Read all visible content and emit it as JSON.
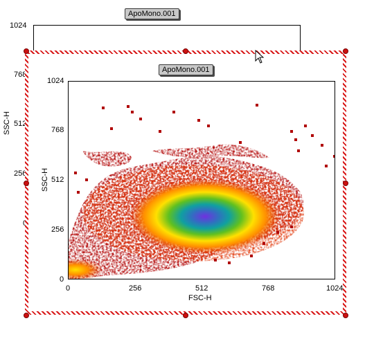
{
  "back_plot": {
    "title": "ApoMono.001",
    "y_axis_label": "SSC-H",
    "y_ticks": [
      "1024",
      "768",
      "512",
      "256",
      "0"
    ]
  },
  "front_plot": {
    "title": "ApoMono.001",
    "x_axis_label": "FSC-H",
    "y_axis_label": "SSC-H",
    "x_ticks": [
      "0",
      "256",
      "512",
      "768",
      "1024"
    ],
    "y_ticks": [
      "1024",
      "768",
      "512",
      "256",
      "0"
    ]
  },
  "chart_data": {
    "type": "heatmap",
    "title": "ApoMono.001",
    "xlabel": "FSC-H",
    "ylabel": "SSC-H",
    "xlim": [
      0,
      1024
    ],
    "ylim": [
      0,
      1024
    ],
    "x_ticks": [
      0,
      256,
      512,
      768,
      1024
    ],
    "y_ticks": [
      0,
      256,
      512,
      768,
      1024
    ],
    "colormap": [
      "#b00000",
      "#e03000",
      "#ff9000",
      "#ffe000",
      "#60c020",
      "#10a0a0",
      "#7030e0"
    ],
    "density_peak": [
      535,
      240
    ],
    "secondary_cluster": [
      20,
      40
    ]
  },
  "colors": {
    "selection_stripe": "#d81818",
    "handle": "#cc1111",
    "title_tag_bg": "#c8c8c8"
  },
  "icons": {
    "cursor": "mouse-pointer-icon"
  }
}
